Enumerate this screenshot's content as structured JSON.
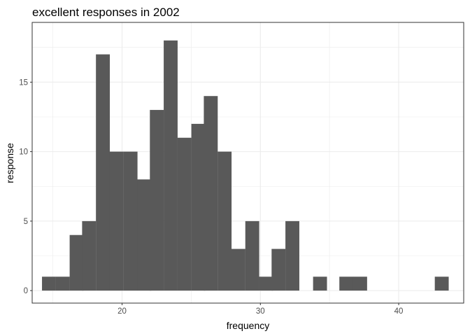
{
  "chart_data": {
    "type": "bar",
    "title": "excellent responses in 2002",
    "xlabel": "frequency",
    "ylabel": "response",
    "xlim": [
      13.5,
      44.7
    ],
    "ylim": [
      -0.9,
      19.3
    ],
    "x_ticks": [
      20,
      30,
      40
    ],
    "y_ticks": [
      0,
      5,
      10,
      15
    ],
    "bin_width": 0.98,
    "bins": [
      {
        "x": 14.7,
        "count": 1
      },
      {
        "x": 15.7,
        "count": 1
      },
      {
        "x": 16.7,
        "count": 4
      },
      {
        "x": 17.6,
        "count": 5
      },
      {
        "x": 18.6,
        "count": 17
      },
      {
        "x": 19.6,
        "count": 10
      },
      {
        "x": 20.6,
        "count": 10
      },
      {
        "x": 21.6,
        "count": 8
      },
      {
        "x": 22.5,
        "count": 13
      },
      {
        "x": 23.5,
        "count": 18
      },
      {
        "x": 24.5,
        "count": 11
      },
      {
        "x": 25.5,
        "count": 12
      },
      {
        "x": 26.4,
        "count": 14
      },
      {
        "x": 27.4,
        "count": 10
      },
      {
        "x": 28.4,
        "count": 3
      },
      {
        "x": 29.4,
        "count": 5
      },
      {
        "x": 30.4,
        "count": 1
      },
      {
        "x": 31.3,
        "count": 3
      },
      {
        "x": 32.3,
        "count": 5
      },
      {
        "x": 34.3,
        "count": 1
      },
      {
        "x": 36.2,
        "count": 1
      },
      {
        "x": 37.2,
        "count": 1
      },
      {
        "x": 43.1,
        "count": 1
      }
    ],
    "bar_color": "#595959",
    "grid": true,
    "grid_color": "#ebebeb",
    "panel_border_color": "#333333"
  }
}
